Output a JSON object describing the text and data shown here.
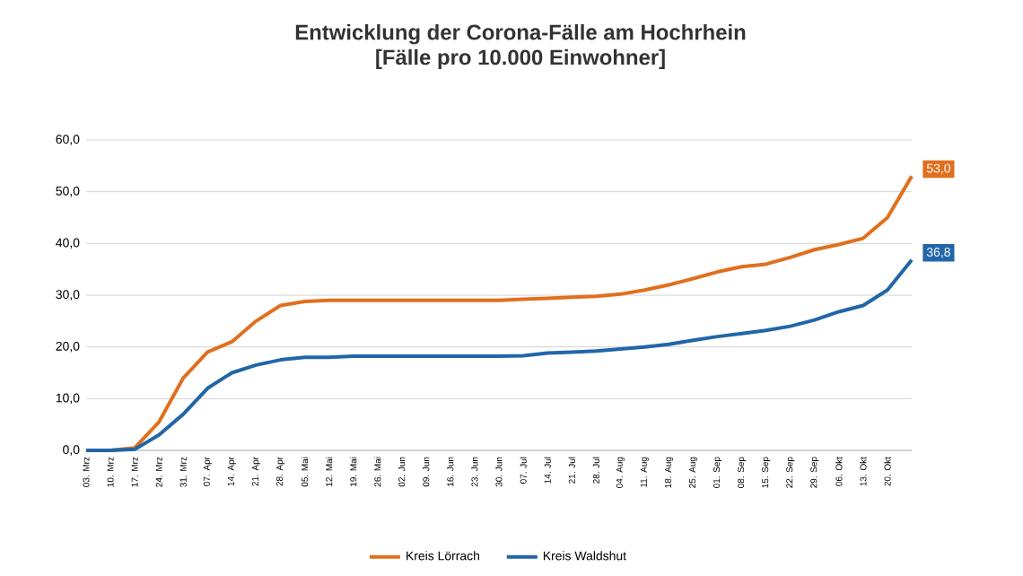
{
  "chart_data": {
    "type": "line",
    "title": "Entwicklung der Corona-Fälle am Hochrhein\n[Fälle pro 10.000 Einwohner]",
    "categories": [
      "03. Mrz",
      "10. Mrz",
      "17. Mrz",
      "24. Mrz",
      "31. Mrz",
      "07. Apr",
      "14. Apr",
      "21. Apr",
      "28. Apr",
      "05. Mai",
      "12. Mai",
      "19. Mai",
      "26. Mai",
      "02. Jun",
      "09. Jun",
      "16. Jun",
      "23. Jun",
      "30. Jun",
      "07. Jul",
      "14. Jul",
      "21. Jul",
      "28. Jul",
      "04. Aug",
      "11. Aug",
      "18. Aug",
      "25. Aug",
      "01. Sep",
      "08. Sep",
      "15. Sep",
      "22. Sep",
      "29. Sep",
      "06. Okt",
      "13. Okt",
      "20. Okt",
      null
    ],
    "series": [
      {
        "name": "Kreis Lörrach",
        "color": "#e0701f",
        "values": [
          0,
          0,
          0.5,
          5.5,
          14,
          19,
          21,
          25,
          28,
          28.8,
          29,
          29,
          29,
          29,
          29,
          29,
          29,
          29,
          29.2,
          29.4,
          29.6,
          29.8,
          30.2,
          31,
          32,
          33.2,
          34.5,
          35.5,
          36,
          37.3,
          38.8,
          39.8,
          41,
          45,
          53.0
        ],
        "value_labels": [
          null,
          null,
          null,
          null,
          null,
          null,
          null,
          null,
          null,
          null,
          null,
          null,
          null,
          null,
          null,
          null,
          null,
          null,
          null,
          null,
          null,
          null,
          null,
          null,
          null,
          null,
          null,
          null,
          null,
          null,
          null,
          null,
          null,
          null,
          "53,0"
        ]
      },
      {
        "name": "Kreis Waldshut",
        "color": "#2166a8",
        "values": [
          0,
          0,
          0.2,
          3,
          7,
          12,
          15,
          16.5,
          17.5,
          18,
          18,
          18.2,
          18.2,
          18.2,
          18.2,
          18.2,
          18.2,
          18.2,
          18.3,
          18.8,
          19,
          19.2,
          19.6,
          20,
          20.5,
          21.3,
          22,
          22.6,
          23.2,
          24,
          25.2,
          26.8,
          28,
          31,
          36.8
        ],
        "value_labels": [
          null,
          null,
          null,
          null,
          null,
          null,
          null,
          null,
          null,
          null,
          null,
          null,
          null,
          null,
          null,
          null,
          null,
          null,
          null,
          null,
          null,
          null,
          null,
          null,
          null,
          null,
          null,
          null,
          null,
          null,
          null,
          null,
          null,
          null,
          "36,8"
        ]
      }
    ],
    "ylim": [
      0,
      60
    ],
    "yticks": [
      {
        "value": 0,
        "label": "0,0"
      },
      {
        "value": 10,
        "label": "10,0"
      },
      {
        "value": 20,
        "label": "20,0"
      },
      {
        "value": 30,
        "label": "30,0"
      },
      {
        "value": 40,
        "label": "40,0"
      },
      {
        "value": 50,
        "label": "50,0"
      },
      {
        "value": 60,
        "label": "60,0"
      }
    ],
    "grid": "y",
    "legend": "bottom",
    "marker": "none",
    "line_style": "solid"
  }
}
